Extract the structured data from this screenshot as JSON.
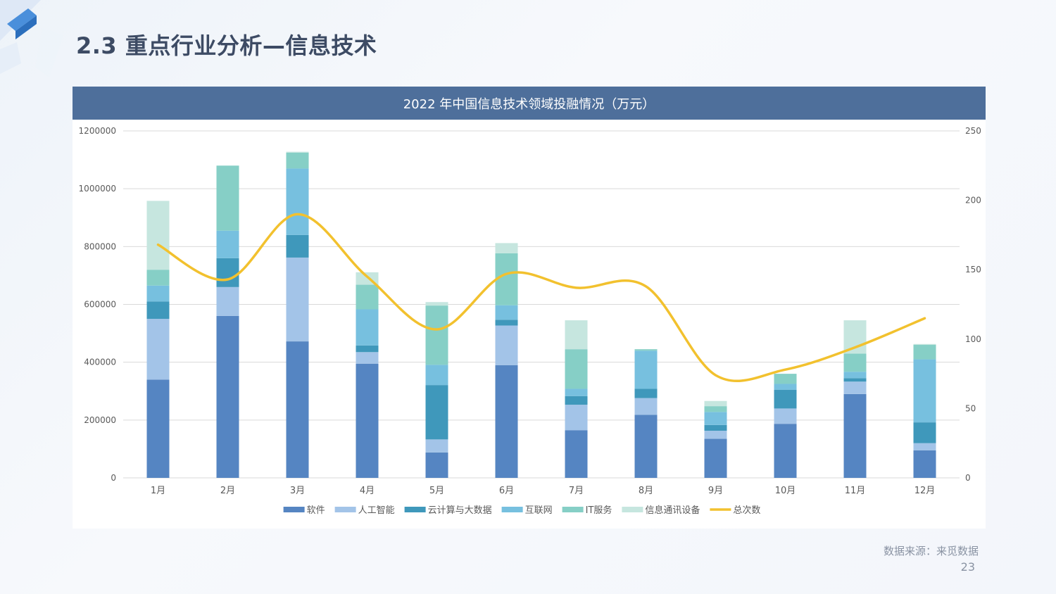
{
  "page": {
    "title": "2.3  重点行业分析—信息技术",
    "source": "数据来源：来觅数据",
    "page_number": "23"
  },
  "colors": {
    "header_bg": "#4e6f9b",
    "title_text": "#3d4b64",
    "grid": "#d9d9d9",
    "axis_text": "#595959"
  },
  "chart_data": {
    "type": "bar",
    "stacked": true,
    "title": "2022 年中国信息技术领域投融情况（万元）",
    "categories": [
      "1月",
      "2月",
      "3月",
      "4月",
      "5月",
      "6月",
      "7月",
      "8月",
      "9月",
      "10月",
      "11月",
      "12月"
    ],
    "ylim": [
      0,
      1200000
    ],
    "yticks": [
      "1200000",
      "1000000",
      "800000",
      "600000",
      "400000",
      "200000",
      "0"
    ],
    "y2lim": [
      0,
      250
    ],
    "y2ticks": [
      "250",
      "200",
      "150",
      "100",
      "50",
      "0"
    ],
    "grid": true,
    "legend_position": "bottom",
    "series": [
      {
        "name": "软件",
        "color": "#5585c2",
        "values": [
          340000,
          560000,
          472000,
          395000,
          88000,
          390000,
          165000,
          218000,
          135000,
          187000,
          290000,
          95000
        ]
      },
      {
        "name": "人工智能",
        "color": "#a3c4e8",
        "values": [
          210000,
          100000,
          290000,
          40000,
          45000,
          137000,
          88000,
          58000,
          28000,
          53000,
          43000,
          25000
        ]
      },
      {
        "name": "云计算与大数据",
        "color": "#3f98bb",
        "values": [
          60000,
          100000,
          78000,
          23000,
          188000,
          20000,
          30000,
          32000,
          20000,
          65000,
          12000,
          72000
        ]
      },
      {
        "name": "互联网",
        "color": "#77c0df",
        "values": [
          55000,
          95000,
          230000,
          125000,
          70000,
          50000,
          25000,
          132000,
          45000,
          20000,
          22000,
          218000
        ]
      },
      {
        "name": "IT服务",
        "color": "#86cfc6",
        "values": [
          55000,
          225000,
          55000,
          85000,
          205000,
          180000,
          137000,
          5000,
          20000,
          35000,
          63000,
          50000
        ]
      },
      {
        "name": "信息通讯设备",
        "color": "#c6e6df",
        "values": [
          238000,
          0,
          3000,
          43000,
          12000,
          35000,
          100000,
          0,
          18000,
          0,
          115000,
          3000
        ]
      }
    ],
    "line_series": {
      "name": "总次数",
      "color": "#f2c12e",
      "axis": "right",
      "values": [
        168,
        143,
        190,
        145,
        107,
        147,
        137,
        138,
        74,
        78,
        94,
        115
      ]
    }
  }
}
